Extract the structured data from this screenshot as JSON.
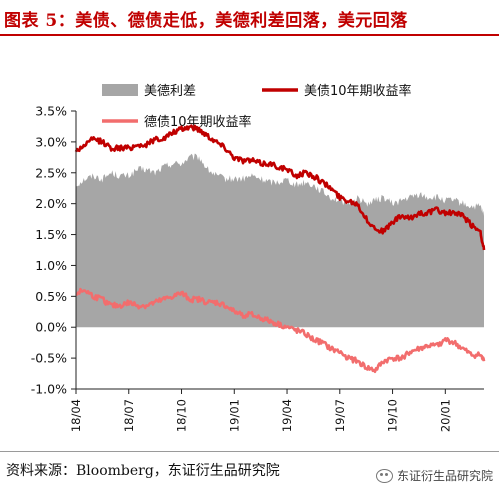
{
  "page_title": "图表 5：美债、德债走低，美德利差回落，美元回落",
  "source_note": "资料来源：Bloomberg，东证衍生品研究院",
  "watermark": "东证衍生品研究院",
  "chart_data": {
    "type": "line",
    "title": "图表 5：美债、德债走低，美德利差回落，美元回落",
    "xlabel": "",
    "ylabel": "",
    "ylim": [
      -1.0,
      3.5
    ],
    "ytick_values": [
      -1.0,
      -0.5,
      0.0,
      0.5,
      1.0,
      1.5,
      2.0,
      2.5,
      3.0,
      3.5
    ],
    "ytick_labels": [
      "-1.0%",
      "-0.5%",
      "0.0%",
      "0.5%",
      "1.0%",
      "1.5%",
      "2.0%",
      "2.5%",
      "3.0%",
      "3.5%"
    ],
    "x_tick_labels": [
      "18/04",
      "18/07",
      "18/10",
      "19/01",
      "19/04",
      "19/07",
      "19/10",
      "20/01"
    ],
    "x_tick_months": [
      0,
      3,
      6,
      9,
      12,
      15,
      18,
      21
    ],
    "x_range_months": [
      0,
      23.2
    ],
    "grid": false,
    "legend_position": "top",
    "x_months": [
      0,
      0.5,
      1,
      1.5,
      2,
      2.5,
      3,
      3.5,
      4,
      4.5,
      5,
      5.5,
      6,
      6.5,
      7,
      7.5,
      8,
      8.5,
      9,
      9.5,
      10,
      10.5,
      11,
      11.5,
      12,
      12.5,
      13,
      13.5,
      14,
      14.5,
      15,
      15.5,
      16,
      16.5,
      17,
      17.5,
      18,
      18.5,
      19,
      19.5,
      20,
      20.5,
      21,
      21.5,
      22,
      22.5,
      23,
      23.2
    ],
    "series": [
      {
        "name": "美德利差",
        "kind": "area",
        "color": "#a6a6a6",
        "values": [
          2.3,
          2.4,
          2.45,
          2.4,
          2.5,
          2.45,
          2.45,
          2.55,
          2.55,
          2.5,
          2.6,
          2.65,
          2.65,
          2.75,
          2.75,
          2.55,
          2.45,
          2.4,
          2.4,
          2.4,
          2.45,
          2.4,
          2.35,
          2.35,
          2.4,
          2.3,
          2.35,
          2.3,
          2.2,
          2.1,
          2.05,
          2.0,
          2.1,
          2.0,
          2.05,
          2.1,
          2.0,
          2.05,
          2.1,
          2.15,
          2.1,
          2.1,
          2.05,
          2.05,
          2.0,
          1.95,
          1.95,
          1.8
        ]
      },
      {
        "name": "美债10年期收益率",
        "kind": "line",
        "color": "#c00000",
        "values": [
          2.85,
          2.95,
          3.05,
          3.0,
          2.9,
          2.9,
          2.9,
          2.95,
          2.95,
          3.05,
          3.05,
          3.15,
          3.2,
          3.25,
          3.2,
          3.1,
          3.0,
          2.9,
          2.75,
          2.7,
          2.7,
          2.65,
          2.65,
          2.6,
          2.55,
          2.45,
          2.5,
          2.45,
          2.35,
          2.25,
          2.1,
          2.05,
          2.0,
          1.75,
          1.6,
          1.55,
          1.7,
          1.8,
          1.75,
          1.85,
          1.85,
          1.9,
          1.85,
          1.85,
          1.8,
          1.65,
          1.55,
          1.25
        ]
      },
      {
        "name": "德债10年期收益率",
        "kind": "line",
        "color": "#f26d6d",
        "values": [
          0.55,
          0.6,
          0.5,
          0.45,
          0.35,
          0.35,
          0.4,
          0.35,
          0.35,
          0.4,
          0.45,
          0.5,
          0.55,
          0.45,
          0.45,
          0.4,
          0.4,
          0.35,
          0.25,
          0.2,
          0.2,
          0.15,
          0.1,
          0.05,
          0.0,
          -0.05,
          -0.1,
          -0.2,
          -0.25,
          -0.35,
          -0.4,
          -0.5,
          -0.55,
          -0.65,
          -0.7,
          -0.55,
          -0.5,
          -0.5,
          -0.4,
          -0.35,
          -0.3,
          -0.3,
          -0.2,
          -0.25,
          -0.35,
          -0.45,
          -0.45,
          -0.55
        ]
      }
    ]
  }
}
